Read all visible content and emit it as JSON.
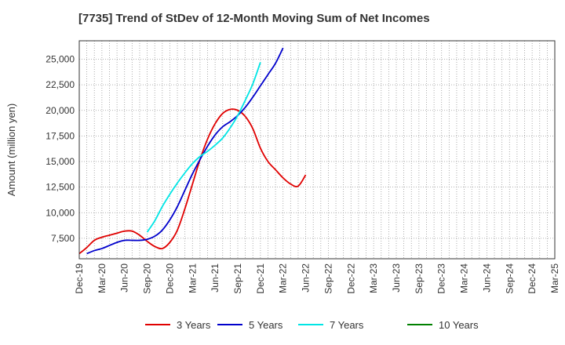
{
  "chart_data": {
    "type": "line",
    "title": "[7735]  Trend of StDev of 12-Month Moving Sum of Net Incomes",
    "xlabel": "",
    "ylabel": "Amount (million yen)",
    "x_ticks": [
      "Dec-19",
      "Mar-20",
      "Jun-20",
      "Sep-20",
      "Dec-20",
      "Mar-21",
      "Jun-21",
      "Sep-21",
      "Dec-21",
      "Mar-22",
      "Jun-22",
      "Sep-22",
      "Dec-22",
      "Mar-23",
      "Jun-23",
      "Sep-23",
      "Dec-23",
      "Mar-24",
      "Jun-24",
      "Sep-24",
      "Dec-24",
      "Mar-25"
    ],
    "y_ticks": [
      7500,
      10000,
      12500,
      15000,
      17500,
      20000,
      22500,
      25000
    ],
    "ylim": [
      5500,
      26800
    ],
    "grid": true,
    "legend_position": "bottom",
    "series": [
      {
        "name": "3 Years",
        "color": "#e00000",
        "start_index": 0,
        "values": [
          6000,
          6600,
          7300,
          7600,
          7800,
          8000,
          8200,
          8200,
          7800,
          7200,
          6700,
          6500,
          7100,
          8300,
          10400,
          12800,
          15200,
          17200,
          18700,
          19700,
          20100,
          20000,
          19400,
          18200,
          16300,
          15000,
          14200,
          13400,
          12800,
          12600,
          13700
        ]
      },
      {
        "name": "5 Years",
        "color": "#0000cc",
        "start_index": 1,
        "values": [
          6000,
          6300,
          6500,
          6800,
          7100,
          7300,
          7300,
          7300,
          7400,
          7700,
          8300,
          9300,
          10600,
          12200,
          13800,
          15200,
          16500,
          17600,
          18400,
          18900,
          19500,
          20300,
          21300,
          22400,
          23500,
          24600,
          26100
        ]
      },
      {
        "name": "7 Years",
        "color": "#00e5e5",
        "start_index": 9,
        "values": [
          8100,
          9200,
          10600,
          11800,
          12900,
          13900,
          14800,
          15500,
          16000,
          16600,
          17300,
          18300,
          19500,
          21000,
          22600,
          24700
        ]
      },
      {
        "name": "10 Years",
        "color": "#008000",
        "start_index": 0,
        "values": []
      }
    ]
  }
}
